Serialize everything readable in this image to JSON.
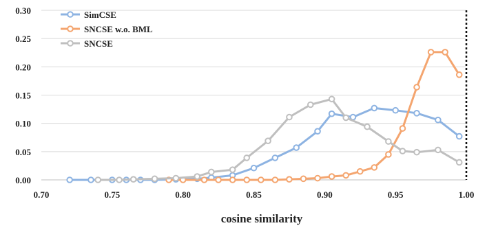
{
  "chart_data": {
    "type": "line",
    "xlabel": "cosine  similarity",
    "ylabel": "",
    "xlim": [
      0.7,
      1.0
    ],
    "ylim": [
      0.0,
      0.3
    ],
    "x_ticks": [
      "0.70",
      "0.75",
      "0.80",
      "0.85",
      "0.90",
      "0.95",
      "1.00"
    ],
    "y_ticks": [
      "0.00",
      "0.05",
      "0.10",
      "0.15",
      "0.20",
      "0.25",
      "0.30"
    ],
    "grid": "horizontal",
    "legend_position": "top-left",
    "right_border": "dotted",
    "series": [
      {
        "name": "SimCSE",
        "color": "#8db3e2",
        "x": [
          0.72,
          0.735,
          0.75,
          0.76,
          0.77,
          0.78,
          0.795,
          0.81,
          0.82,
          0.835,
          0.85,
          0.865,
          0.88,
          0.895,
          0.905,
          0.92,
          0.935,
          0.95,
          0.965,
          0.98,
          0.995
        ],
        "y": [
          0.0,
          0.0,
          0.0,
          0.0,
          0.0,
          0.0,
          0.001,
          0.002,
          0.004,
          0.008,
          0.021,
          0.039,
          0.057,
          0.086,
          0.117,
          0.111,
          0.127,
          0.123,
          0.118,
          0.106,
          0.077
        ]
      },
      {
        "name": "SNCSE w.o. BML",
        "color": "#f4a56f",
        "x": [
          0.79,
          0.8,
          0.815,
          0.825,
          0.835,
          0.845,
          0.855,
          0.865,
          0.875,
          0.885,
          0.895,
          0.905,
          0.915,
          0.925,
          0.935,
          0.945,
          0.955,
          0.965,
          0.975,
          0.985,
          0.995
        ],
        "y": [
          0.0,
          0.0,
          0.0,
          0.0,
          0.0,
          0.0,
          0.0,
          0.0,
          0.001,
          0.002,
          0.003,
          0.006,
          0.008,
          0.015,
          0.022,
          0.045,
          0.091,
          0.164,
          0.226,
          0.226,
          0.186
        ]
      },
      {
        "name": "SNCSE",
        "color": "#bfbfbf",
        "x": [
          0.74,
          0.755,
          0.765,
          0.78,
          0.795,
          0.81,
          0.82,
          0.835,
          0.845,
          0.86,
          0.875,
          0.89,
          0.905,
          0.915,
          0.93,
          0.945,
          0.955,
          0.965,
          0.98,
          0.995
        ],
        "y": [
          0.0,
          0.0,
          0.001,
          0.002,
          0.003,
          0.006,
          0.014,
          0.018,
          0.039,
          0.069,
          0.111,
          0.133,
          0.143,
          0.11,
          0.094,
          0.068,
          0.051,
          0.049,
          0.053,
          0.031
        ]
      }
    ]
  }
}
